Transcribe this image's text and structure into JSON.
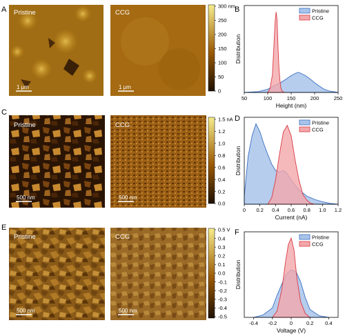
{
  "panels": {
    "A": {
      "letter": "A",
      "left_label": "Pristine",
      "right_label": "CCG",
      "left_scale": "1 μm",
      "right_scale": "1 μm",
      "colorbar_ticks": [
        "300 nm",
        "250",
        "200",
        "150",
        "100",
        "50",
        "0"
      ]
    },
    "C": {
      "letter": "C",
      "left_label": "Pristine",
      "right_label": "CCG",
      "left_scale": "500 nm",
      "right_scale": "500 nm",
      "colorbar_ticks": [
        "1.5 nA",
        "1.2",
        "1.0",
        "0.8",
        "0.6",
        "0.4",
        "0.2",
        "0.0"
      ]
    },
    "E": {
      "letter": "E",
      "left_label": "Pristine",
      "right_label": "CCG",
      "left_scale": "500 nm",
      "right_scale": "500 nm",
      "colorbar_ticks": [
        "0.5 V",
        "0.4",
        "0.3",
        "0.2",
        "0.1",
        "0.0",
        "-0.1",
        "-0.2",
        "-0.3",
        "-0.4",
        "-0.5"
      ]
    }
  },
  "colors": {
    "pristine_fill": "#a9c4ea",
    "pristine_line": "#3b6fc4",
    "ccg_fill": "#f2a8ab",
    "ccg_line": "#d93a44",
    "afm_dark": "#1f1000",
    "afm_mid": "#9a5a06",
    "afm_light": "#f6ec8c"
  },
  "chart_data": [
    {
      "panel": "B",
      "type": "area",
      "xlabel": "Height (nm)",
      "ylabel": "Distribution",
      "xlim": [
        50,
        250
      ],
      "xticks": [
        "50",
        "100",
        "150",
        "200",
        "250"
      ],
      "xtick_values": [
        50,
        100,
        150,
        200,
        250
      ],
      "legend": "top-right",
      "series": [
        {
          "name": "Pristine",
          "x": [
            50,
            80,
            100,
            110,
            120,
            130,
            140,
            150,
            160,
            165,
            170,
            180,
            190,
            200,
            210,
            220,
            230,
            240,
            250
          ],
          "y": [
            0.0,
            0.01,
            0.04,
            0.07,
            0.1,
            0.13,
            0.17,
            0.21,
            0.24,
            0.25,
            0.24,
            0.21,
            0.17,
            0.12,
            0.08,
            0.04,
            0.02,
            0.01,
            0.0
          ]
        },
        {
          "name": "CCG",
          "x": [
            100,
            105,
            110,
            113,
            116,
            118,
            120,
            122,
            124,
            126,
            128,
            130,
            135,
            140
          ],
          "y": [
            0.0,
            0.05,
            0.22,
            0.55,
            0.9,
            1.0,
            0.9,
            0.55,
            0.3,
            0.15,
            0.06,
            0.02,
            0.0,
            0.0
          ]
        }
      ]
    },
    {
      "panel": "D",
      "type": "area",
      "xlabel": "Current (nA)",
      "ylabel": "Distribution",
      "xlim": [
        0,
        1.2
      ],
      "xticks": [
        "0",
        "0.2",
        "0.4",
        "0.6",
        "0.8",
        "1.0",
        "1.2"
      ],
      "xtick_values": [
        0,
        0.2,
        0.4,
        0.6,
        0.8,
        1.0,
        1.2
      ],
      "legend": "top-right",
      "series": [
        {
          "name": "Pristine",
          "x": [
            0.0,
            0.05,
            0.1,
            0.15,
            0.2,
            0.25,
            0.3,
            0.35,
            0.4,
            0.45,
            0.5,
            0.55,
            0.6,
            0.7,
            0.8,
            0.9,
            1.0,
            1.1,
            1.2
          ],
          "y": [
            0.1,
            0.6,
            0.85,
            1.0,
            0.9,
            0.75,
            0.62,
            0.5,
            0.42,
            0.4,
            0.42,
            0.38,
            0.3,
            0.18,
            0.1,
            0.06,
            0.03,
            0.01,
            0.0
          ]
        },
        {
          "name": "CCG",
          "x": [
            0.3,
            0.35,
            0.4,
            0.45,
            0.5,
            0.55,
            0.6,
            0.65,
            0.7,
            0.75,
            0.8,
            0.85,
            0.9
          ],
          "y": [
            0.0,
            0.08,
            0.3,
            0.62,
            0.9,
            0.98,
            0.85,
            0.55,
            0.3,
            0.12,
            0.05,
            0.01,
            0.0
          ]
        }
      ]
    },
    {
      "panel": "F",
      "type": "area",
      "xlabel": "Voltage (V)",
      "ylabel": "Distribution",
      "xlim": [
        -0.5,
        0.5
      ],
      "xticks": [
        "-0.4",
        "-0.2",
        "0",
        "0.2",
        "0.4"
      ],
      "xtick_values": [
        -0.4,
        -0.2,
        0,
        0.2,
        0.4
      ],
      "legend": "top-right",
      "series": [
        {
          "name": "Pristine",
          "x": [
            -0.4,
            -0.3,
            -0.2,
            -0.15,
            -0.1,
            -0.05,
            0.0,
            0.05,
            0.1,
            0.15,
            0.2,
            0.3,
            0.4
          ],
          "y": [
            0.0,
            0.03,
            0.12,
            0.28,
            0.42,
            0.55,
            0.6,
            0.58,
            0.45,
            0.25,
            0.1,
            0.02,
            0.0
          ]
        },
        {
          "name": "CCG",
          "x": [
            -0.2,
            -0.15,
            -0.1,
            -0.06,
            -0.03,
            0.0,
            0.03,
            0.06,
            0.1,
            0.15,
            0.2
          ],
          "y": [
            0.0,
            0.08,
            0.35,
            0.7,
            0.92,
            1.0,
            0.85,
            0.5,
            0.2,
            0.05,
            0.0
          ]
        }
      ]
    }
  ]
}
